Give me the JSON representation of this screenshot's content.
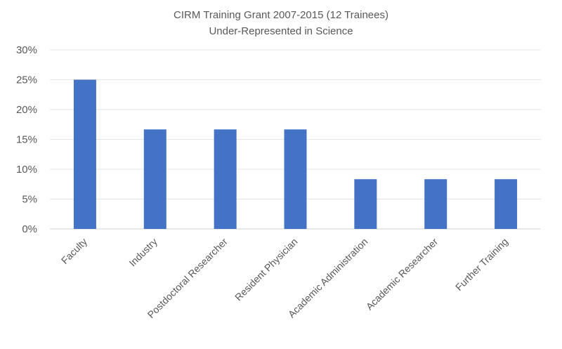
{
  "chart_data": {
    "type": "bar",
    "title": "CIRM Training Grant 2007-2015 (12 Trainees)",
    "subtitle": "Under-Represented in Science",
    "xlabel": "",
    "ylabel": "",
    "ylim": [
      0,
      0.3
    ],
    "y_tick_labels": [
      "0%",
      "5%",
      "10%",
      "15%",
      "20%",
      "25%",
      "30%"
    ],
    "y_tick_values": [
      0,
      0.05,
      0.1,
      0.15,
      0.2,
      0.25,
      0.3
    ],
    "grid": true,
    "legend": "none",
    "bar_color": "#4472C4",
    "categories": [
      "Faculty",
      "Industry",
      "Postdoctoral Researcher",
      "Resident Physician",
      "Academic Administration",
      "Academic Researcher",
      "Further Training"
    ],
    "values": [
      0.25,
      0.1667,
      0.1667,
      0.1667,
      0.0833,
      0.0833,
      0.0833
    ]
  }
}
